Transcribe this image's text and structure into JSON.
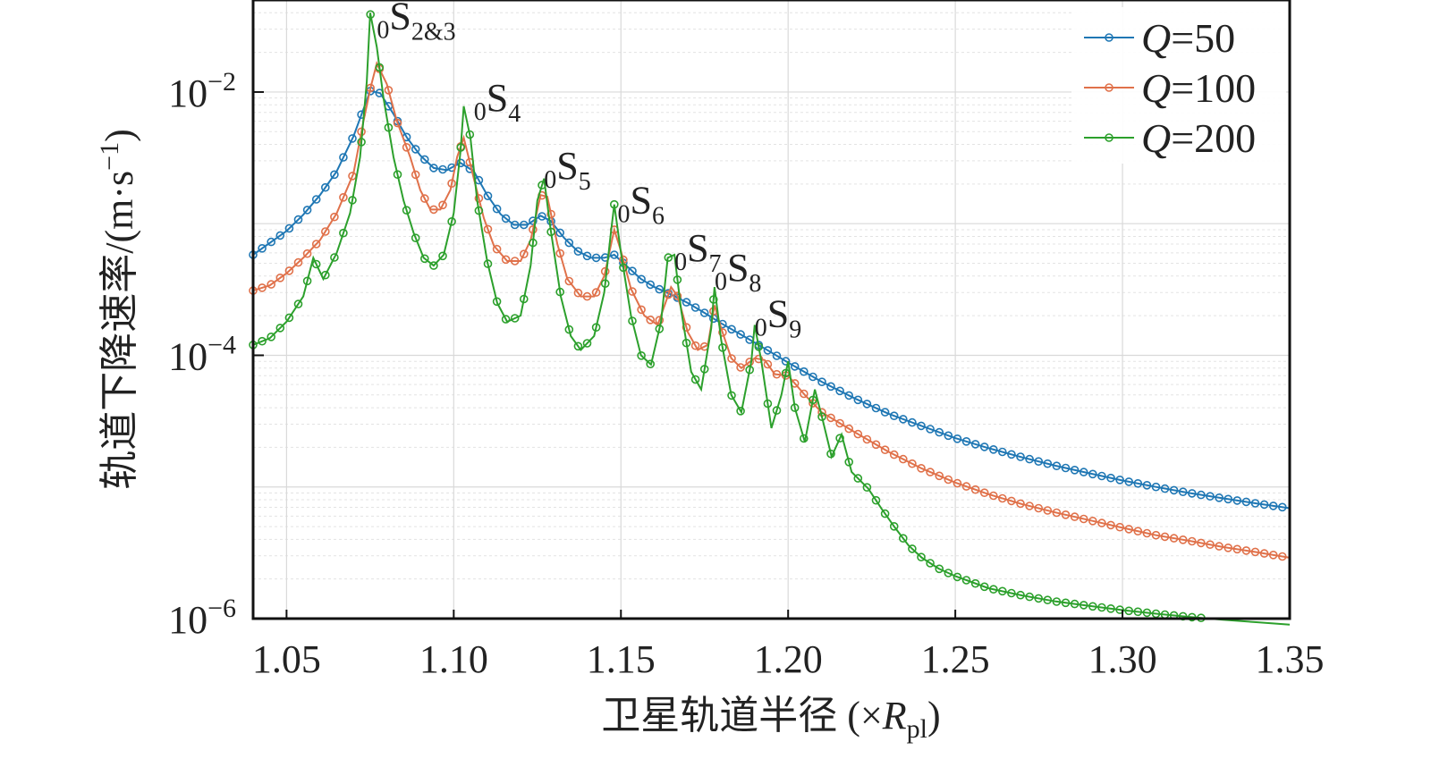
{
  "chart_data": {
    "type": "line",
    "title": "",
    "xlabel": "卫星轨道半径 (×R_pl)",
    "xlabel_parts": {
      "main": "卫星轨道半径 (×",
      "var": "R",
      "sub": "pl",
      "close": ")"
    },
    "ylabel": "轨道下降速率/(m·s⁻¹)",
    "ylabel_parts": {
      "main": "轨道下降速率/(m·s",
      "sup": "−1",
      "close": ")"
    },
    "xlim": [
      1.04,
      1.35
    ],
    "ylim": [
      1e-06,
      0.05
    ],
    "yscale": "log",
    "grid": true,
    "legend_position": "top-right",
    "xticks": [
      {
        "value": 1.05,
        "label": "1.05"
      },
      {
        "value": 1.1,
        "label": "1.10"
      },
      {
        "value": 1.15,
        "label": "1.15"
      },
      {
        "value": 1.2,
        "label": "1.20"
      },
      {
        "value": 1.25,
        "label": "1.25"
      },
      {
        "value": 1.3,
        "label": "1.30"
      },
      {
        "value": 1.35,
        "label": "1.35"
      }
    ],
    "yticks": [
      {
        "value": 0.01,
        "base": "10",
        "exp": "−2"
      },
      {
        "value": 0.0001,
        "base": "10",
        "exp": "−4"
      },
      {
        "value": 1e-06,
        "base": "10",
        "exp": "−6"
      }
    ],
    "annotations": [
      {
        "pre": "0",
        "main": "S",
        "sub": "2&3",
        "x": 1.077,
        "y": 0.03
      },
      {
        "pre": "0",
        "main": "S",
        "sub": "4",
        "x": 1.106,
        "y": 0.0072
      },
      {
        "pre": "0",
        "main": "S",
        "sub": "5",
        "x": 1.127,
        "y": 0.0022
      },
      {
        "pre": "0",
        "main": "S",
        "sub": "6",
        "x": 1.149,
        "y": 0.0012
      },
      {
        "pre": "0",
        "main": "S",
        "sub": "7",
        "x": 1.166,
        "y": 0.00052
      },
      {
        "pre": "0",
        "main": "S",
        "sub": "8",
        "x": 1.178,
        "y": 0.00037
      },
      {
        "pre": "0",
        "main": "S",
        "sub": "9",
        "x": 1.19,
        "y": 0.000165
      }
    ],
    "series": [
      {
        "name": "Q=50",
        "label_var": "Q",
        "label_rest": "=50",
        "color": "#1f77b4",
        "points": [
          [
            1.04,
            0.00058
          ],
          [
            1.05,
            0.00088
          ],
          [
            1.055,
            0.00117
          ],
          [
            1.06,
            0.00165
          ],
          [
            1.065,
            0.0025
          ],
          [
            1.07,
            0.0046
          ],
          [
            1.075,
            0.0102
          ],
          [
            1.078,
            0.0098
          ],
          [
            1.082,
            0.0068
          ],
          [
            1.086,
            0.0045
          ],
          [
            1.09,
            0.0033
          ],
          [
            1.094,
            0.00265
          ],
          [
            1.098,
            0.00255
          ],
          [
            1.102,
            0.0029
          ],
          [
            1.106,
            0.0025
          ],
          [
            1.11,
            0.00165
          ],
          [
            1.114,
            0.00118
          ],
          [
            1.118,
            0.00098
          ],
          [
            1.122,
            0.00098
          ],
          [
            1.126,
            0.00115
          ],
          [
            1.129,
            0.00105
          ],
          [
            1.133,
            0.00078
          ],
          [
            1.137,
            0.00062
          ],
          [
            1.141,
            0.00055
          ],
          [
            1.145,
            0.00055
          ],
          [
            1.148,
            0.00058
          ],
          [
            1.152,
            0.00047
          ],
          [
            1.156,
            0.00038
          ],
          [
            1.16,
            0.00033
          ],
          [
            1.165,
            0.00029
          ],
          [
            1.17,
            0.00025
          ],
          [
            1.175,
            0.00021
          ],
          [
            1.18,
            0.000175
          ],
          [
            1.185,
            0.000148
          ],
          [
            1.19,
            0.000125
          ],
          [
            1.195,
            0.000105
          ],
          [
            1.2,
            8.8e-05
          ],
          [
            1.21,
            6.3e-05
          ],
          [
            1.22,
            4.7e-05
          ],
          [
            1.23,
            3.6e-05
          ],
          [
            1.24,
            2.9e-05
          ],
          [
            1.25,
            2.35e-05
          ],
          [
            1.26,
            1.97e-05
          ],
          [
            1.27,
            1.68e-05
          ],
          [
            1.28,
            1.45e-05
          ],
          [
            1.29,
            1.27e-05
          ],
          [
            1.3,
            1.12e-05
          ],
          [
            1.31,
            1e-05
          ],
          [
            1.32,
            9e-06
          ],
          [
            1.33,
            8.2e-06
          ],
          [
            1.34,
            7.5e-06
          ],
          [
            1.35,
            6.9e-06
          ]
        ]
      },
      {
        "name": "Q=100",
        "label_var": "Q",
        "label_rest": "=100",
        "color": "#e0714a",
        "points": [
          [
            1.04,
            0.00031
          ],
          [
            1.045,
            0.00034
          ],
          [
            1.05,
            0.00042
          ],
          [
            1.055,
            0.00055
          ],
          [
            1.06,
            0.00075
          ],
          [
            1.065,
            0.0012
          ],
          [
            1.07,
            0.0024
          ],
          [
            1.073,
            0.006
          ],
          [
            1.075,
            0.0105
          ],
          [
            1.077,
            0.0165
          ],
          [
            1.08,
            0.0115
          ],
          [
            1.083,
            0.006
          ],
          [
            1.087,
            0.0032
          ],
          [
            1.09,
            0.0018
          ],
          [
            1.093,
            0.00128
          ],
          [
            1.096,
            0.00128
          ],
          [
            1.099,
            0.0018
          ],
          [
            1.101,
            0.0032
          ],
          [
            1.103,
            0.0045
          ],
          [
            1.106,
            0.0022
          ],
          [
            1.109,
            0.0011
          ],
          [
            1.112,
            0.00068
          ],
          [
            1.116,
            0.00052
          ],
          [
            1.12,
            0.00052
          ],
          [
            1.123,
            0.00075
          ],
          [
            1.126,
            0.00165
          ],
          [
            1.128,
            0.0016
          ],
          [
            1.131,
            0.0007
          ],
          [
            1.134,
            0.00038
          ],
          [
            1.138,
            0.00028
          ],
          [
            1.142,
            0.00028
          ],
          [
            1.145,
            0.0004
          ],
          [
            1.148,
            0.0009
          ],
          [
            1.15,
            0.00062
          ],
          [
            1.153,
            0.00032
          ],
          [
            1.157,
            0.0002
          ],
          [
            1.161,
            0.00017
          ],
          [
            1.165,
            0.00033
          ],
          [
            1.167,
            0.00028
          ],
          [
            1.17,
            0.00015
          ],
          [
            1.173,
            0.00011
          ],
          [
            1.176,
            0.00012
          ],
          [
            1.178,
            0.00024
          ],
          [
            1.18,
            0.00016
          ],
          [
            1.183,
            9.5e-05
          ],
          [
            1.186,
            8e-05
          ],
          [
            1.19,
            9.5e-05
          ],
          [
            1.193,
            9.2e-05
          ],
          [
            1.196,
            7.2e-05
          ],
          [
            1.2,
            7e-05
          ],
          [
            1.205,
            5e-05
          ],
          [
            1.21,
            3.7e-05
          ],
          [
            1.215,
            3.1e-05
          ],
          [
            1.22,
            2.6e-05
          ],
          [
            1.23,
            1.85e-05
          ],
          [
            1.24,
            1.38e-05
          ],
          [
            1.25,
            1.08e-05
          ],
          [
            1.26,
            8.8e-06
          ],
          [
            1.27,
            7.4e-06
          ],
          [
            1.28,
            6.4e-06
          ],
          [
            1.29,
            5.6e-06
          ],
          [
            1.3,
            4.9e-06
          ],
          [
            1.31,
            4.3e-06
          ],
          [
            1.32,
            3.9e-06
          ],
          [
            1.33,
            3.5e-06
          ],
          [
            1.34,
            3.2e-06
          ],
          [
            1.35,
            2.9e-06
          ]
        ]
      },
      {
        "name": "Q=200",
        "label_var": "Q",
        "label_rest": "=200",
        "color": "#2ca02c",
        "points": [
          [
            1.04,
            0.00012
          ],
          [
            1.045,
            0.000135
          ],
          [
            1.05,
            0.00018
          ],
          [
            1.055,
            0.00028
          ],
          [
            1.058,
            0.00055
          ],
          [
            1.061,
            0.00038
          ],
          [
            1.065,
            0.0006
          ],
          [
            1.069,
            0.0012
          ],
          [
            1.072,
            0.0032
          ],
          [
            1.074,
            0.012
          ],
          [
            1.075,
            0.04
          ],
          [
            1.077,
            0.022
          ],
          [
            1.079,
            0.009
          ],
          [
            1.082,
            0.0032
          ],
          [
            1.085,
            0.0015
          ],
          [
            1.088,
            0.00085
          ],
          [
            1.091,
            0.00055
          ],
          [
            1.094,
            0.00048
          ],
          [
            1.097,
            0.00058
          ],
          [
            1.1,
            0.0012
          ],
          [
            1.102,
            0.0035
          ],
          [
            1.103,
            0.0078
          ],
          [
            1.105,
            0.0045
          ],
          [
            1.107,
            0.0015
          ],
          [
            1.11,
            0.00052
          ],
          [
            1.113,
            0.00025
          ],
          [
            1.116,
            0.00018
          ],
          [
            1.12,
            0.0002
          ],
          [
            1.123,
            0.00048
          ],
          [
            1.125,
            0.0015
          ],
          [
            1.127,
            0.0022
          ],
          [
            1.129,
            0.0009
          ],
          [
            1.132,
            0.00028
          ],
          [
            1.135,
            0.00014
          ],
          [
            1.138,
            0.00011
          ],
          [
            1.142,
            0.00014
          ],
          [
            1.145,
            0.0003
          ],
          [
            1.147,
            0.00085
          ],
          [
            1.148,
            0.0014
          ],
          [
            1.15,
            0.0006
          ],
          [
            1.153,
            0.0002
          ],
          [
            1.156,
            0.0001
          ],
          [
            1.159,
            8.5e-05
          ],
          [
            1.162,
            0.00018
          ],
          [
            1.164,
            0.00055
          ],
          [
            1.166,
            0.00058
          ],
          [
            1.168,
            0.00022
          ],
          [
            1.171,
            7.5e-05
          ],
          [
            1.174,
            5.5e-05
          ],
          [
            1.177,
            0.00016
          ],
          [
            1.178,
            0.00033
          ],
          [
            1.18,
            0.00013
          ],
          [
            1.183,
            5e-05
          ],
          [
            1.186,
            3.7e-05
          ],
          [
            1.189,
            9e-05
          ],
          [
            1.19,
            0.00017
          ],
          [
            1.192,
            9e-05
          ],
          [
            1.195,
            2.8e-05
          ],
          [
            1.198,
            5e-05
          ],
          [
            1.2,
            9e-05
          ],
          [
            1.202,
            4e-05
          ],
          [
            1.205,
            2.2e-05
          ],
          [
            1.208,
            5.5e-05
          ],
          [
            1.21,
            3.5e-05
          ],
          [
            1.213,
            1.7e-05
          ],
          [
            1.216,
            2.5e-05
          ],
          [
            1.219,
            1.3e-05
          ],
          [
            1.224,
            9.7e-06
          ],
          [
            1.228,
            6.8e-06
          ],
          [
            1.232,
            4.9e-06
          ],
          [
            1.236,
            3.6e-06
          ],
          [
            1.24,
            2.9e-06
          ],
          [
            1.245,
            2.4e-06
          ],
          [
            1.25,
            2.1e-06
          ],
          [
            1.26,
            1.7e-06
          ],
          [
            1.27,
            1.5e-06
          ],
          [
            1.28,
            1.35e-06
          ],
          [
            1.29,
            1.25e-06
          ],
          [
            1.3,
            1.16e-06
          ],
          [
            1.31,
            1.09e-06
          ],
          [
            1.32,
            1.03e-06
          ],
          [
            1.33,
            9.8e-07
          ],
          [
            1.34,
            9.4e-07
          ],
          [
            1.35,
            9e-07
          ]
        ]
      }
    ]
  }
}
